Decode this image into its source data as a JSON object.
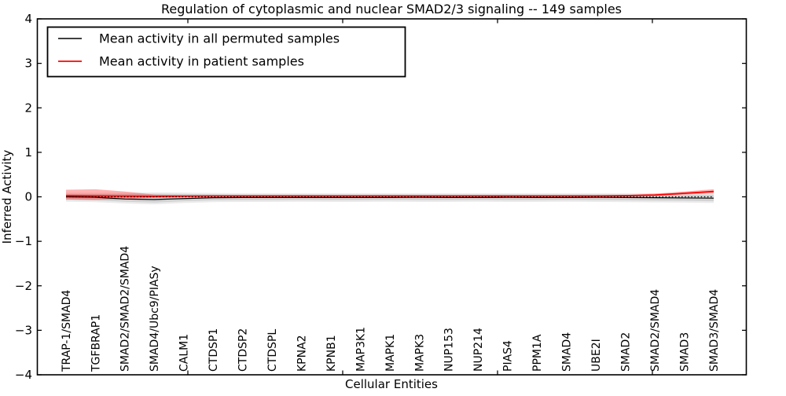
{
  "figure": {
    "title": "Regulation of cytoplasmic and nuclear SMAD2/3 signaling -- 149 samples"
  },
  "axes": {
    "xlabel": "Cellular Entities",
    "ylabel": "Inferred Activity",
    "ylim": [
      -4,
      4
    ],
    "yticks": [
      {
        "value": 4,
        "label": "4"
      },
      {
        "value": 3,
        "label": "3"
      },
      {
        "value": 2,
        "label": "2"
      },
      {
        "value": 1,
        "label": "1"
      },
      {
        "value": 0,
        "label": "0"
      },
      {
        "value": -1,
        "label": "−1"
      },
      {
        "value": -2,
        "label": "−2"
      },
      {
        "value": -3,
        "label": "−3"
      },
      {
        "value": -4,
        "label": "−4"
      }
    ]
  },
  "legend": {
    "entries": [
      {
        "label": "Mean activity in all permuted samples",
        "color": "#000000"
      },
      {
        "label": "Mean activity in patient samples",
        "color": "#ff0000"
      }
    ]
  },
  "colors": {
    "permuted_line": "#000000",
    "patient_line": "#ff0000",
    "permuted_band": "#000000",
    "patient_band": "#ff0000",
    "spine": "#000000",
    "background": "#ffffff"
  },
  "chart_data": {
    "type": "line",
    "title": "Regulation of cytoplasmic and nuclear SMAD2/3 signaling -- 149 samples",
    "xlabel": "Cellular Entities",
    "ylabel": "Inferred Activity",
    "ylim": [
      -4,
      4
    ],
    "grid": false,
    "legend_position": "upper left",
    "x_tick_label_rotation": 90,
    "categories": [
      "TRAP-1/SMAD4",
      "TGFBRAP1",
      "SMAD2/SMAD2/SMAD4",
      "SMAD4/Ubc9/PIASy",
      "CALM1",
      "CTDSP1",
      "CTDSP2",
      "CTDSPL",
      "KPNA2",
      "KPNB1",
      "MAP3K1",
      "MAPK1",
      "MAPK3",
      "NUP153",
      "NUP214",
      "PIAS4",
      "PPM1A",
      "SMAD4",
      "UBE2I",
      "SMAD2",
      "SMAD2/SMAD4",
      "SMAD3",
      "SMAD3/SMAD4"
    ],
    "series": [
      {
        "name": "Mean activity in all permuted samples",
        "color": "#000000",
        "style": "solid",
        "width": 1.2,
        "values": [
          0.0,
          -0.01,
          -0.05,
          -0.06,
          -0.04,
          -0.02,
          -0.015,
          -0.015,
          -0.015,
          -0.015,
          -0.015,
          -0.015,
          -0.012,
          -0.015,
          -0.015,
          -0.012,
          -0.015,
          -0.015,
          -0.012,
          -0.015,
          -0.02,
          -0.025,
          -0.03
        ]
      },
      {
        "name": "Mean activity in patient samples",
        "color": "#ff0000",
        "style": "solid",
        "width": 1.8,
        "values": [
          0.025,
          0.02,
          0.015,
          0.01,
          0.015,
          0.02,
          0.02,
          0.02,
          0.02,
          0.02,
          0.02,
          0.02,
          0.02,
          0.02,
          0.02,
          0.02,
          0.02,
          0.02,
          0.02,
          0.025,
          0.04,
          0.08,
          0.12
        ]
      }
    ],
    "reference_line": {
      "y": 0,
      "color": "#000000",
      "style": "dotted",
      "width": 1.3
    },
    "bands": [
      {
        "name": "permuted-range-outer",
        "color": "#000000",
        "opacity": 0.08,
        "upper": [
          0.09,
          0.09,
          0.095,
          0.1,
          0.095,
          0.085,
          0.08,
          0.08,
          0.08,
          0.08,
          0.08,
          0.08,
          0.08,
          0.08,
          0.08,
          0.08,
          0.08,
          0.08,
          0.08,
          0.08,
          0.08,
          0.08,
          0.085
        ],
        "lower": [
          -0.11,
          -0.12,
          -0.15,
          -0.17,
          -0.14,
          -0.12,
          -0.115,
          -0.115,
          -0.11,
          -0.115,
          -0.115,
          -0.11,
          -0.115,
          -0.115,
          -0.11,
          -0.115,
          -0.115,
          -0.11,
          -0.115,
          -0.12,
          -0.125,
          -0.13,
          -0.14
        ]
      },
      {
        "name": "permuted-range-inner",
        "color": "#000000",
        "opacity": 0.1,
        "upper": [
          0.06,
          0.06,
          0.065,
          0.07,
          0.065,
          0.055,
          0.05,
          0.05,
          0.05,
          0.05,
          0.05,
          0.05,
          0.05,
          0.05,
          0.05,
          0.05,
          0.05,
          0.05,
          0.05,
          0.05,
          0.05,
          0.05,
          0.05
        ],
        "lower": [
          -0.07,
          -0.08,
          -0.11,
          -0.13,
          -0.1,
          -0.08,
          -0.075,
          -0.075,
          -0.07,
          -0.075,
          -0.075,
          -0.07,
          -0.075,
          -0.075,
          -0.07,
          -0.075,
          -0.075,
          -0.07,
          -0.075,
          -0.08,
          -0.085,
          -0.09,
          -0.1
        ]
      },
      {
        "name": "patient-range",
        "color": "#ff0000",
        "opacity": 0.3,
        "upper": [
          0.16,
          0.17,
          0.12,
          0.05,
          0.035,
          0.03,
          0.03,
          0.03,
          0.03,
          0.03,
          0.03,
          0.03,
          0.03,
          0.03,
          0.03,
          0.03,
          0.03,
          0.03,
          0.03,
          0.04,
          0.07,
          0.12,
          0.17
        ],
        "lower": [
          -0.06,
          -0.07,
          -0.05,
          -0.02,
          -0.005,
          0.005,
          0.01,
          0.01,
          0.01,
          0.01,
          0.01,
          0.01,
          0.01,
          0.01,
          0.01,
          0.01,
          0.01,
          0.01,
          0.01,
          0.012,
          0.02,
          0.05,
          0.08
        ]
      }
    ]
  }
}
